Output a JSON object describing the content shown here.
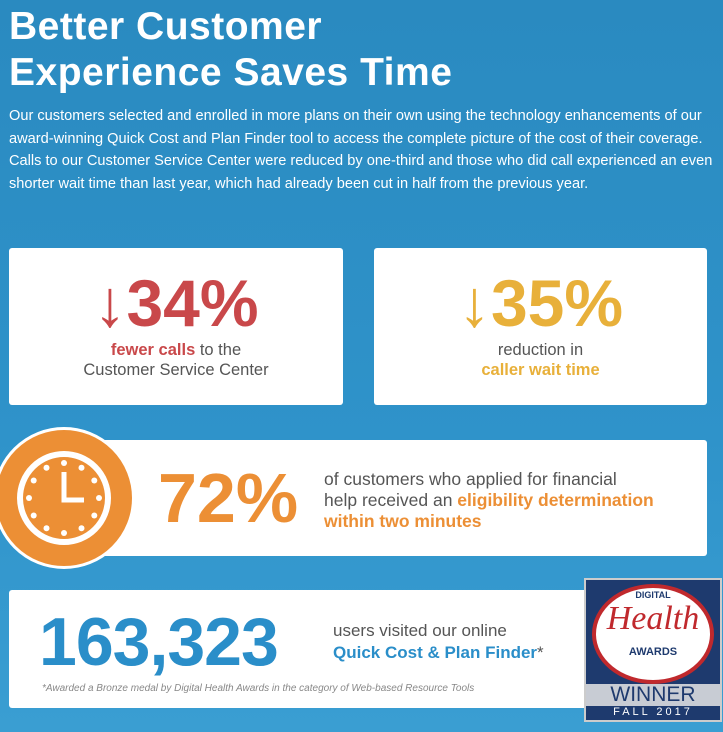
{
  "title_line1": "Better Customer",
  "title_line2": "Experience Saves Time",
  "intro": "Our customers selected and enrolled in more plans on their own using the technology enhancements of our award-winning Quick Cost and Plan Finder tool to access the complete picture of the cost of their coverage. Calls to our Customer Service Center were reduced by one-third and those who did call experienced an even shorter wait time than last year, which had already been cut in half from the previous year.",
  "stat_calls": {
    "value": "34%",
    "highlight": "fewer calls",
    "rest": " to the",
    "line2": "Customer Service Center",
    "color": "#c9484a",
    "icon": "arrow-down-icon"
  },
  "stat_wait": {
    "value": "35%",
    "line1": "reduction in",
    "highlight": "caller wait time",
    "color": "#e8b03a",
    "icon": "arrow-down-icon"
  },
  "stat_eligibility": {
    "value": "72%",
    "text1": "of customers who applied for financial",
    "text2": "help received an ",
    "highlight1": "eligibility determination",
    "highlight2": "within two minutes",
    "color": "#ec8f35",
    "icon": "clock-icon"
  },
  "stat_users": {
    "value": "163,323",
    "line1": "users visited our online",
    "highlight": "Quick Cost & Plan Finder",
    "asterisk": "*",
    "footnote": "*Awarded a Bronze medal by Digital Health Awards in the category of Web-based Resource Tools",
    "color": "#2a8ec9"
  },
  "award": {
    "digital": "DIGITAL",
    "health": "Health",
    "awards": "AWARDS",
    "winner": "WINNER",
    "season": "FALL 2017"
  }
}
